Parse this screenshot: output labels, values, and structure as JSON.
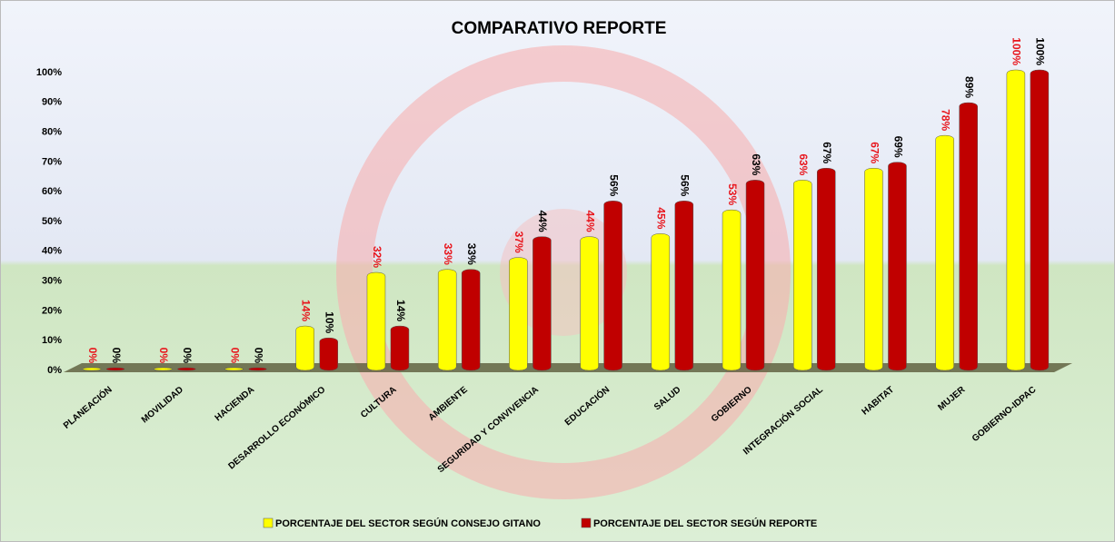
{
  "chart_data": {
    "type": "bar",
    "title": "COMPARATIVO REPORTE",
    "categories": [
      "PLANEACIÓN",
      "MOVILIDAD",
      "HACIENDA",
      "DESARROLLO ECONÓMICO",
      "CULTURA",
      "AMBIENTE",
      "SEGURIDAD Y CONVIVENCIA",
      "EDUCACIÓN",
      "SALUD",
      "GOBIERNO",
      "INTEGRACIÓN SOCIAL",
      "HABITAT",
      "MUJER",
      "GOBIERNO-IDPAC"
    ],
    "series": [
      {
        "name": "PORCENTAJE DEL SECTOR SEGÚN CONSEJO GITANO",
        "color": "#ffff00",
        "label_color": "#e8141b",
        "values": [
          0,
          0,
          0,
          14,
          32,
          33,
          37,
          44,
          45,
          53,
          63,
          67,
          78,
          100
        ],
        "value_labels": [
          "0%",
          "0%",
          "0%",
          "14%",
          "32%",
          "33%",
          "37%",
          "44%",
          "45%",
          "53%",
          "63%",
          "67%",
          "78%",
          "100%"
        ]
      },
      {
        "name": "PORCENTAJE DEL SECTOR SEGÚN REPORTE",
        "color": "#c00000",
        "label_color": "#000000",
        "values": [
          0,
          0,
          0,
          10,
          14,
          33,
          44,
          56,
          56,
          63,
          67,
          69,
          89,
          100
        ],
        "value_labels": [
          "0%",
          "0%",
          "0%",
          "10%",
          "14%",
          "33%",
          "44%",
          "56%",
          "56%",
          "63%",
          "67%",
          "69%",
          "89%",
          "100%"
        ]
      }
    ],
    "ylim": [
      0,
      100
    ],
    "yticks": [
      {
        "value": 0,
        "label": "0%"
      },
      {
        "value": 10,
        "label": "10%"
      },
      {
        "value": 20,
        "label": "20%"
      },
      {
        "value": 30,
        "label": "30%"
      },
      {
        "value": 40,
        "label": "40%"
      },
      {
        "value": 50,
        "label": "50%"
      },
      {
        "value": 60,
        "label": "60%"
      },
      {
        "value": 70,
        "label": "70%"
      },
      {
        "value": 80,
        "label": "80%"
      },
      {
        "value": 90,
        "label": "90%"
      },
      {
        "value": 100,
        "label": "100%"
      }
    ],
    "legend": "bottom"
  }
}
